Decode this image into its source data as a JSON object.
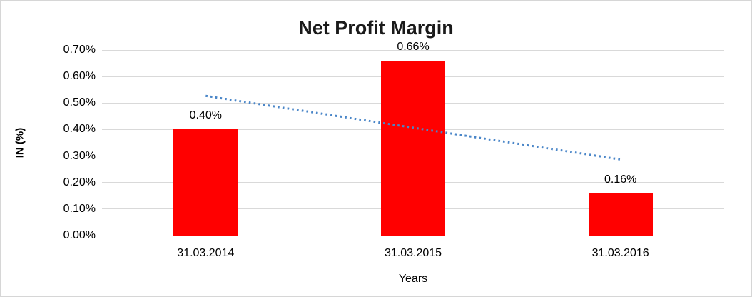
{
  "chart_data": {
    "type": "bar",
    "title": "Net Profit Margin",
    "xlabel": "Years",
    "ylabel": "IN (%)",
    "categories": [
      "31.03.2014",
      "31.03.2015",
      "31.03.2016"
    ],
    "values": [
      0.4,
      0.66,
      0.16
    ],
    "data_labels": [
      "0.40%",
      "0.66%",
      "0.16%"
    ],
    "y_ticks": [
      {
        "value": 0.0,
        "label": "0.00%"
      },
      {
        "value": 0.1,
        "label": "0.10%"
      },
      {
        "value": 0.2,
        "label": "0.20%"
      },
      {
        "value": 0.3,
        "label": "0.30%"
      },
      {
        "value": 0.4,
        "label": "0.40%"
      },
      {
        "value": 0.5,
        "label": "0.50%"
      },
      {
        "value": 0.6,
        "label": "0.60%"
      },
      {
        "value": 0.7,
        "label": "0.70%"
      }
    ],
    "ylim": [
      0,
      0.7
    ],
    "grid": true,
    "legend": "none",
    "colors": {
      "bar": "#ff0000",
      "gridline": "#d9d9d9",
      "frame_border": "#d6d6d6",
      "trendline": "#4a86c8",
      "text": "#000000"
    },
    "trendline": {
      "type": "linear",
      "style": "dotted",
      "start_value": 0.527,
      "end_value": 0.287
    }
  }
}
